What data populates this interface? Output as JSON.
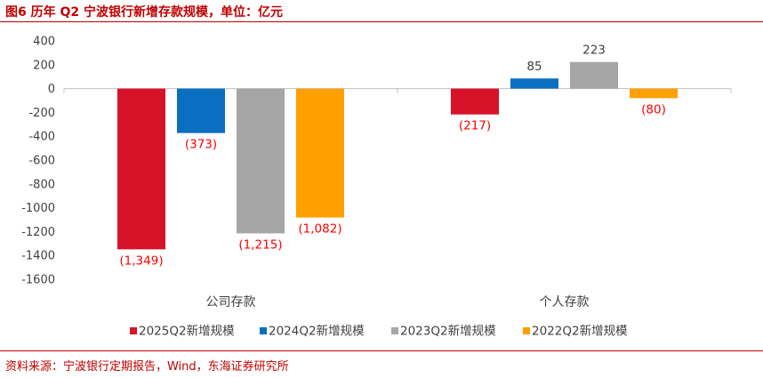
{
  "figure": {
    "title": "图6  历年 Q2 宁波银行新增存款规模，单位：亿元",
    "source": "资料来源：宁波银行定期报告，Wind，东海证券研究所"
  },
  "chart_data": {
    "type": "bar",
    "title": "图6  历年 Q2 宁波银行新增存款规模，单位：亿元",
    "unit": "亿元",
    "categories": [
      "公司存款",
      "个人存款"
    ],
    "series": [
      {
        "name": "2025Q2新增规模",
        "color": "#d7132a",
        "values": [
          -1349,
          -217
        ],
        "labels": [
          "(1,349)",
          "(217)"
        ]
      },
      {
        "name": "2024Q2新增规模",
        "color": "#0b6fc1",
        "values": [
          -373,
          85
        ],
        "labels": [
          "(373)",
          "85"
        ]
      },
      {
        "name": "2023Q2新增规模",
        "color": "#a6a6a6",
        "values": [
          -1215,
          223
        ],
        "labels": [
          "(1,215)",
          "223"
        ]
      },
      {
        "name": "2022Q2新增规模",
        "color": "#ffa000",
        "values": [
          -1082,
          -80
        ],
        "labels": [
          "(1,082)",
          "(80)"
        ]
      }
    ],
    "ylim": [
      -1600,
      400
    ],
    "yticks": [
      400,
      200,
      0,
      -200,
      -400,
      -600,
      -800,
      -1000,
      -1200,
      -1400,
      -1600
    ],
    "negative_label_color": "#ff0000",
    "positive_label_color": "#404040",
    "legend_position": "bottom",
    "grid": false
  }
}
